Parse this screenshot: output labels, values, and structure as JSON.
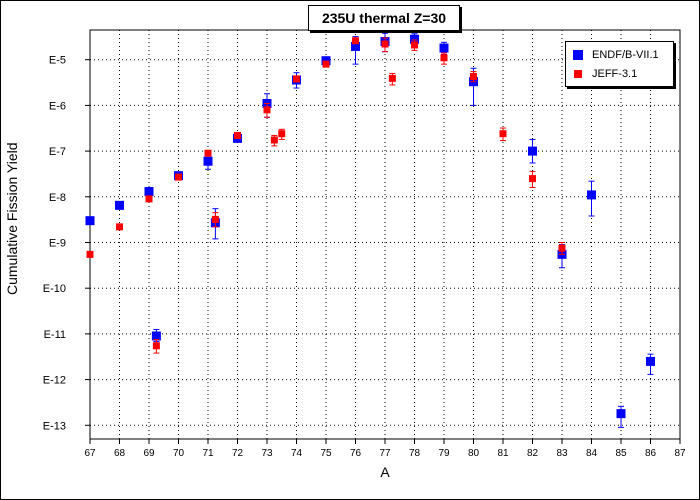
{
  "chart_data": {
    "type": "scatter",
    "title": "235U thermal Z=30",
    "xlabel": "A",
    "ylabel": "Cumulative Fission Yield",
    "xlim": [
      67,
      87
    ],
    "x_ticks": [
      "67",
      "68",
      "69",
      "70",
      "71",
      "72",
      "73",
      "74",
      "75",
      "76",
      "77",
      "78",
      "79",
      "80",
      "81",
      "82",
      "83",
      "84",
      "85",
      "86",
      "87"
    ],
    "y_scale": "log",
    "ylim_exponent": [
      -13.3,
      -4.35
    ],
    "y_ticks": [
      {
        "label": "E-5",
        "exp": -5
      },
      {
        "label": "E-6",
        "exp": -6
      },
      {
        "label": "E-7",
        "exp": -7
      },
      {
        "label": "E-8",
        "exp": -8
      },
      {
        "label": "E-9",
        "exp": -9
      },
      {
        "label": "E-10",
        "exp": -10
      },
      {
        "label": "E-11",
        "exp": -11
      },
      {
        "label": "E-12",
        "exp": -12
      },
      {
        "label": "E-13",
        "exp": -13
      }
    ],
    "legend_position": "top-right",
    "grid": true,
    "series": [
      {
        "name": "ENDF/B-VII.1",
        "color": "#0000ff",
        "marker": "square",
        "points": [
          {
            "x": 67,
            "y": "3.0e-9"
          },
          {
            "x": 68,
            "y": "6.5e-9"
          },
          {
            "x": 69,
            "y": "1.3e-8",
            "err": [
              1e-08,
              1.6e-08
            ]
          },
          {
            "x": 69.25,
            "y": "9.0e-12",
            "err": [
              6.8e-12,
              1.25e-11
            ]
          },
          {
            "x": 70,
            "y": "2.9e-8"
          },
          {
            "x": 71,
            "y": "6.0e-8",
            "err": [
              4e-08,
              9e-08
            ]
          },
          {
            "x": 71.25,
            "y": "2.7e-9",
            "err": [
              1.2e-09,
              5.5e-09
            ]
          },
          {
            "x": 72,
            "y": "1.9e-7"
          },
          {
            "x": 73,
            "y": "1.1e-6",
            "err": [
              5.5e-07,
              1.8e-06
            ]
          },
          {
            "x": 74,
            "y": "3.6e-6",
            "err": [
              2.4e-06,
              5.2e-06
            ]
          },
          {
            "x": 75,
            "y": "9.5e-6"
          },
          {
            "x": 76,
            "y": "1.95e-5",
            "err": [
              8e-06,
              3.2e-05
            ]
          },
          {
            "x": 77,
            "y": "2.5e-5",
            "err": [
              1.5e-05,
              3.8e-05
            ]
          },
          {
            "x": 78,
            "y": "2.8e-5",
            "err": [
              2.2e-05,
              3.7e-05
            ]
          },
          {
            "x": 79,
            "y": "1.8e-5",
            "err": [
              1.3e-05,
              2.4e-05
            ]
          },
          {
            "x": 80,
            "y": "3.3e-6",
            "err": [
              1e-06,
              6.5e-06
            ]
          },
          {
            "x": 82,
            "y": "1.0e-7",
            "err": [
              5.5e-08,
              1.8e-07
            ]
          },
          {
            "x": 83,
            "y": "5.5e-10",
            "err": [
              2.8e-10,
              9e-10
            ]
          },
          {
            "x": 84,
            "y": "1.1e-8",
            "err": [
              3.8e-09,
              2.2e-08
            ]
          },
          {
            "x": 85,
            "y": "1.8e-13",
            "err": [
              9e-14,
              2.6e-13
            ]
          },
          {
            "x": 86,
            "y": "2.5e-12",
            "err": [
              1.3e-12,
              3.6e-12
            ]
          }
        ]
      },
      {
        "name": "JEFF-3.1",
        "color": "#ff0000",
        "marker": "square",
        "points": [
          {
            "x": 67,
            "y": "5.5e-10"
          },
          {
            "x": 68,
            "y": "2.2e-9"
          },
          {
            "x": 69,
            "y": "9.0e-9"
          },
          {
            "x": 69.25,
            "y": "5.5e-12",
            "err": [
              3.8e-12,
              7.5e-12
            ]
          },
          {
            "x": 70,
            "y": "2.7e-8"
          },
          {
            "x": 71,
            "y": "9.0e-8"
          },
          {
            "x": 71.25,
            "y": "3.2e-9",
            "err": [
              2.2e-09,
              4.5e-09
            ]
          },
          {
            "x": 72,
            "y": "2.2e-7"
          },
          {
            "x": 73,
            "y": "8.0e-7",
            "err": [
              5.5e-07,
              1.1e-06
            ]
          },
          {
            "x": 73.25,
            "y": "1.75e-7",
            "err": [
              1.3e-07,
              2.2e-07
            ]
          },
          {
            "x": 73.5,
            "y": "2.4e-7",
            "err": [
              1.8e-07,
              3e-07
            ]
          },
          {
            "x": 74,
            "y": "3.8e-6"
          },
          {
            "x": 75,
            "y": "8.0e-6"
          },
          {
            "x": 76,
            "y": "2.6e-5"
          },
          {
            "x": 77,
            "y": "2.2e-5",
            "err": [
              1.5e-05,
              3e-05
            ]
          },
          {
            "x": 77.25,
            "y": "3.9e-6",
            "err": [
              2.8e-06,
              5e-06
            ]
          },
          {
            "x": 78,
            "y": "2.1e-5",
            "err": [
              1.6e-05,
              2.7e-05
            ]
          },
          {
            "x": 79,
            "y": "1.1e-5",
            "err": [
              8e-06,
              1.4e-05
            ]
          },
          {
            "x": 80,
            "y": "4.3e-6",
            "err": [
              3.3e-06,
              5.5e-06
            ]
          },
          {
            "x": 81,
            "y": "2.4e-7",
            "err": [
              1.7e-07,
              3.2e-07
            ]
          },
          {
            "x": 82,
            "y": "2.5e-8",
            "err": [
              1.6e-08,
              3.6e-08
            ]
          },
          {
            "x": 83,
            "y": "7.5e-10",
            "err": [
              5.5e-10,
              1e-09
            ]
          }
        ]
      }
    ]
  }
}
